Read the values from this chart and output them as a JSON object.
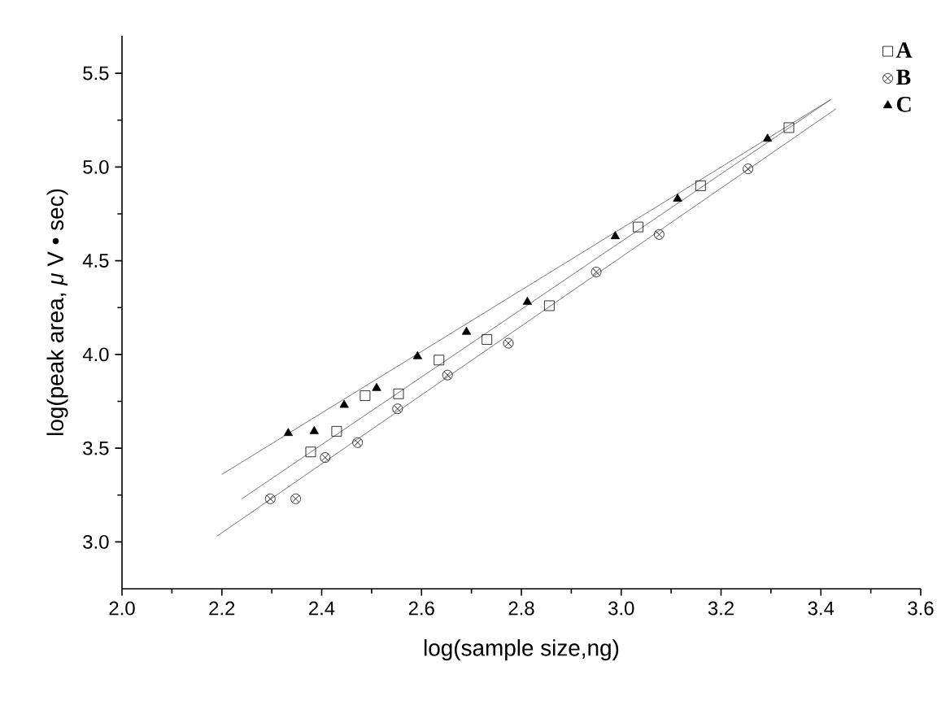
{
  "chart_data": {
    "type": "scatter",
    "xlabel": "log(sample size,ng)",
    "ylabel": "log(peak area, *μ* V • sec)",
    "xlim": [
      2.0,
      3.6
    ],
    "ylim": [
      2.75,
      5.7
    ],
    "xticks": [
      {
        "value": 2.0,
        "label": "2.0"
      },
      2.2,
      2.4,
      2.6,
      2.8,
      {
        "value": 3.0,
        "label": "3.0"
      },
      3.2,
      3.4,
      3.6
    ],
    "yticks": [
      {
        "value": 3.0,
        "label": "3.0"
      },
      3.5,
      {
        "value": 4.0,
        "label": "4.0"
      },
      4.5,
      {
        "value": 5.0,
        "label": "5.0"
      },
      5.5
    ],
    "legend": "top right",
    "grid": false,
    "series": [
      {
        "name": "A",
        "color": "#000000",
        "marker": "square",
        "x": [
          2.378,
          2.43,
          2.487,
          2.554,
          2.635,
          2.731,
          2.856,
          3.034,
          3.159,
          3.336
        ],
        "values": [
          3.48,
          3.59,
          3.78,
          3.79,
          3.97,
          4.08,
          4.26,
          4.68,
          4.9,
          5.21
        ]
      },
      {
        "name": "B",
        "color": "#000000",
        "marker": "cross",
        "x": [
          2.297,
          2.348,
          2.407,
          2.472,
          2.552,
          2.652,
          2.774,
          2.95,
          3.076,
          3.254
        ],
        "values": [
          3.23,
          3.23,
          3.45,
          3.53,
          3.71,
          3.89,
          4.06,
          4.44,
          4.64,
          4.99
        ]
      },
      {
        "name": "C",
        "color": "#000000",
        "marker": "triangle",
        "x": [
          2.333,
          2.385,
          2.445,
          2.51,
          2.592,
          2.69,
          2.812,
          2.988,
          3.113,
          3.293
        ],
        "values": [
          3.58,
          3.59,
          3.73,
          3.82,
          3.99,
          4.12,
          4.28,
          4.63,
          4.83,
          5.15
        ]
      },
      {
        "type": "line",
        "color": "#555555",
        "marker": "none",
        "line_style": "solid",
        "x": [
          2.24,
          3.42
        ],
        "values": [
          3.23,
          5.36
        ]
      },
      {
        "type": "line",
        "color": "#555555",
        "marker": "none",
        "line_style": "solid",
        "x": [
          2.19,
          3.43
        ],
        "values": [
          3.03,
          5.31
        ]
      },
      {
        "type": "line",
        "color": "#555555",
        "marker": "none",
        "line_style": "solid",
        "x": [
          2.2,
          3.42
        ],
        "values": [
          3.36,
          5.36
        ]
      }
    ]
  }
}
